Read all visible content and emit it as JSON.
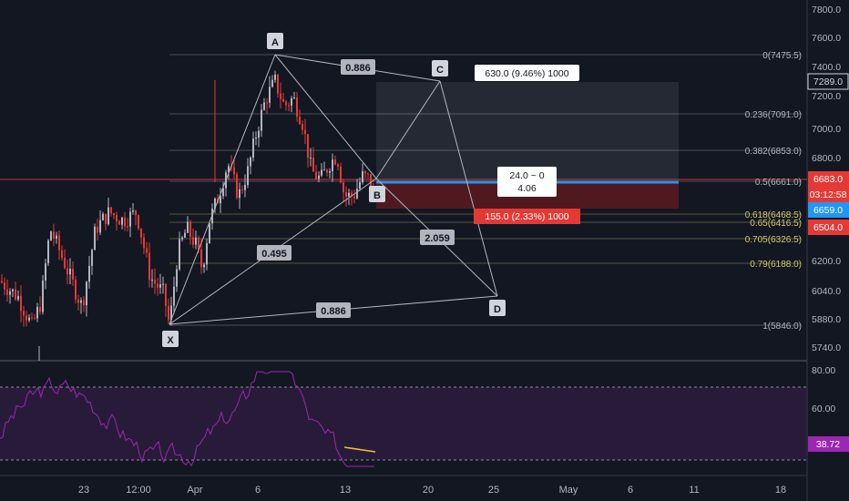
{
  "chart_data": {
    "type": "candlestick",
    "price_axis": {
      "ticks": [
        "7800.0",
        "7600.0",
        "7400.0",
        "7200.0",
        "7000.0",
        "6800.0",
        "6600.0",
        "6400.0",
        "6200.0",
        "6040.0",
        "5880.0",
        "5740.0"
      ],
      "ylim": [
        5690,
        7900
      ]
    },
    "time_axis": {
      "ticks": [
        "23",
        "12:00",
        "Apr",
        "6",
        "13",
        "20",
        "25",
        "May",
        "6",
        "11",
        "18"
      ]
    },
    "price_badges": [
      {
        "label": "7289.0",
        "style": "outline"
      },
      {
        "label": "6683.0",
        "style": "red"
      },
      {
        "label": "03:12:58",
        "style": "red"
      },
      {
        "label": "6659.0",
        "style": "blue"
      },
      {
        "label": "6504.0",
        "style": "red"
      }
    ],
    "fib_levels": [
      {
        "label": "0(7475.5)",
        "price": 7475.5,
        "color": "#b2b5be"
      },
      {
        "label": "0.236(7091.0)",
        "price": 7091.0,
        "color": "#b2b5be"
      },
      {
        "label": "0.382(6853.0)",
        "price": 6853.0,
        "color": "#b2b5be"
      },
      {
        "label": "0.5(6661.0)",
        "price": 6661.0,
        "color": "#b2b5be"
      },
      {
        "label": "0.618(6468.5)",
        "price": 6468.5,
        "color": "#d4c66a"
      },
      {
        "label": "0.65(6416.5)",
        "price": 6416.5,
        "color": "#d4c66a"
      },
      {
        "label": "0.705(6326.5)",
        "price": 6326.5,
        "color": "#d4c66a"
      },
      {
        "label": "0.79(6188.0)",
        "price": 6188.0,
        "color": "#d4c66a"
      },
      {
        "label": "1(5846.0)",
        "price": 5846.0,
        "color": "#b2b5be"
      }
    ],
    "pattern": {
      "points": [
        {
          "label": "X",
          "price": 5846
        },
        {
          "label": "A",
          "price": 7475
        },
        {
          "label": "B",
          "price": 6661
        },
        {
          "label": "C",
          "price": 7289
        },
        {
          "label": "D",
          "price": 6023
        }
      ],
      "ratios": [
        "0.886",
        "0.495",
        "2.059",
        "0.886"
      ]
    },
    "position": {
      "target_label": "630.0 (9.46%) 1000",
      "stop_label": "155.0 (2.33%) 1000",
      "center_line1": "24.0 ~ 0",
      "center_line2": "4.06",
      "entry": 6659,
      "target": 7289,
      "stop": 6504
    },
    "rsi": {
      "ticks": [
        "80.00",
        "60.00"
      ],
      "current": "38.72",
      "upper": 70,
      "lower": 30
    },
    "colors": {
      "background": "#131722",
      "bull": "#b2b5be",
      "bear": "#e53935",
      "rsi_line": "#9c27b0",
      "entry_line": "#2196f3"
    }
  }
}
